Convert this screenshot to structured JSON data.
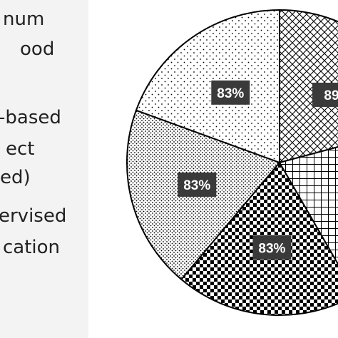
{
  "chart_data": {
    "type": "pie",
    "title": "",
    "legend_placement": "left",
    "legend_entries": [
      [
        "num",
        "ood"
      ],
      [
        "-based",
        "ect",
        "ed)"
      ],
      [
        "ervised",
        "cation"
      ]
    ],
    "slices": [
      {
        "label": "89",
        "value": 89,
        "pattern": "crosshatch"
      },
      {
        "label": "",
        "value": 89,
        "pattern": "grid"
      },
      {
        "label": "83%",
        "value": 83,
        "pattern": "checker"
      },
      {
        "label": "83%",
        "value": 83,
        "pattern": "dense-dots"
      },
      {
        "label": "83%",
        "value": 83,
        "pattern": "sparse-dots"
      }
    ]
  }
}
